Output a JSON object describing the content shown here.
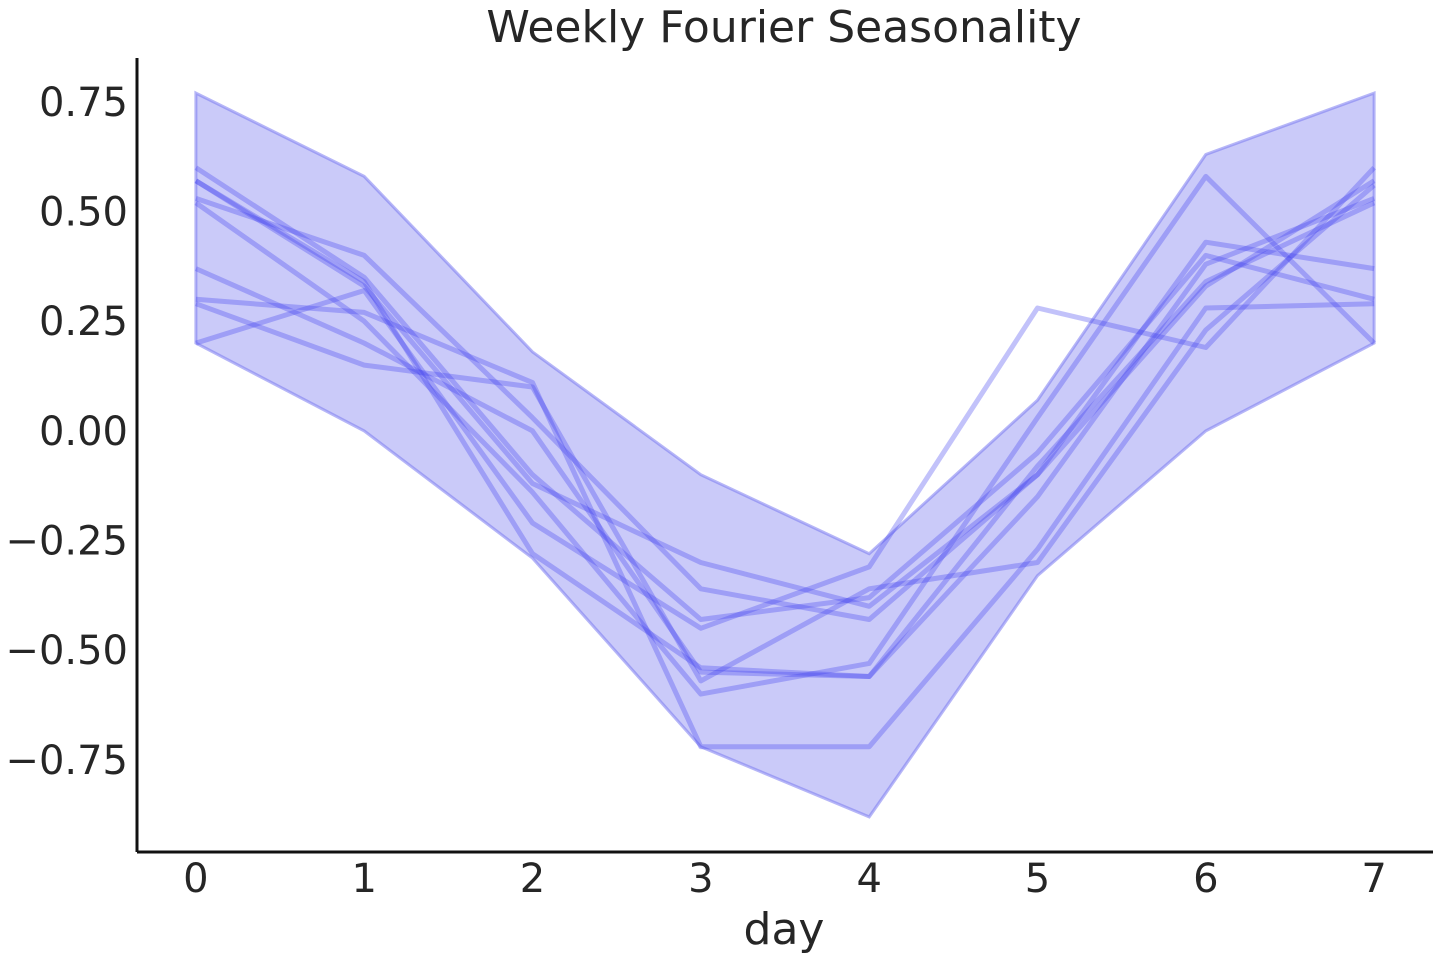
{
  "chart_data": {
    "type": "line",
    "title": "Weekly Fourier Seasonality",
    "xlabel": "day",
    "ylabel": "",
    "x": [
      0,
      1,
      2,
      3,
      4,
      5,
      6,
      7
    ],
    "xlim": [
      -0.35,
      7.35
    ],
    "ylim": [
      -0.96,
      0.85
    ],
    "x_ticks": [
      "0",
      "1",
      "2",
      "3",
      "4",
      "5",
      "6",
      "7"
    ],
    "y_ticks": [
      -0.75,
      -0.5,
      -0.25,
      0.0,
      0.25,
      0.5,
      0.75
    ],
    "y_tick_labels": [
      "−0.75",
      "−0.50",
      "−0.25",
      "0.00",
      "0.25",
      "0.50",
      "0.75"
    ],
    "grid": false,
    "band": {
      "upper": [
        0.77,
        0.58,
        0.18,
        -0.1,
        -0.28,
        0.07,
        0.63,
        0.77
      ],
      "lower": [
        0.2,
        0.0,
        -0.29,
        -0.72,
        -0.88,
        -0.33,
        0.0,
        0.2
      ]
    },
    "series": [
      {
        "values": [
          0.6,
          0.35,
          -0.1,
          -0.43,
          -0.38,
          -0.05,
          0.4,
          0.3
        ]
      },
      {
        "values": [
          0.57,
          0.33,
          -0.12,
          -0.3,
          -0.4,
          -0.1,
          0.43,
          0.37
        ]
      },
      {
        "values": [
          0.53,
          0.4,
          0.03,
          -0.36,
          -0.43,
          -0.1,
          0.33,
          0.57
        ]
      },
      {
        "values": [
          0.52,
          0.25,
          -0.14,
          -0.6,
          -0.53,
          0.03,
          0.58,
          0.2
        ]
      },
      {
        "values": [
          0.37,
          0.2,
          0.0,
          -0.55,
          -0.56,
          -0.15,
          0.38,
          0.53
        ]
      },
      {
        "values": [
          0.3,
          0.27,
          0.11,
          -0.72,
          -0.72,
          -0.27,
          0.28,
          0.29
        ]
      },
      {
        "values": [
          0.2,
          0.32,
          -0.21,
          -0.45,
          -0.31,
          0.28,
          0.19,
          0.6
        ]
      },
      {
        "values": [
          0.29,
          0.15,
          0.1,
          -0.57,
          -0.36,
          -0.3,
          0.23,
          0.56
        ]
      },
      {
        "values": [
          0.57,
          0.34,
          -0.28,
          -0.54,
          -0.56,
          -0.08,
          0.34,
          0.52
        ]
      }
    ],
    "colors": {
      "line": "#4040ee",
      "band": "#7a7af0"
    }
  }
}
